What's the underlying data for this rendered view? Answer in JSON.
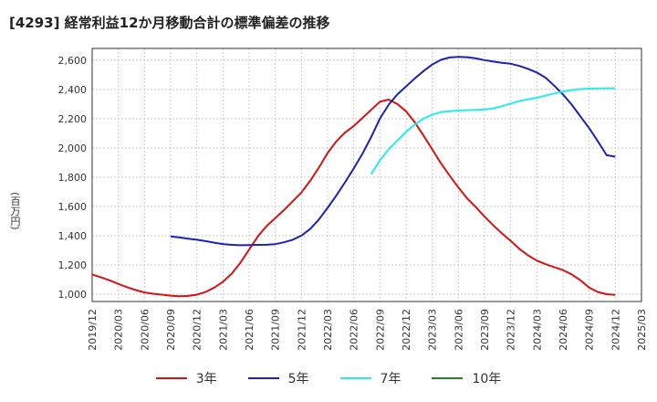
{
  "chart_data": {
    "type": "line",
    "title": "[4293]  経常利益12か月移動合計の標準偏差の推移",
    "ylabel": "(百万円)",
    "xlabel": "",
    "ylim": [
      950,
      2680
    ],
    "yticks": [
      1000,
      1200,
      1400,
      1600,
      1800,
      2000,
      2200,
      2400,
      2600
    ],
    "ytick_labels": [
      "1,000",
      "1,200",
      "1,400",
      "1,600",
      "1,800",
      "2,000",
      "2,200",
      "2,400",
      "2,600"
    ],
    "x_start": "2019-12",
    "x_end": "2025-03",
    "xticks": [
      "2019/12",
      "2020/03",
      "2020/06",
      "2020/09",
      "2020/12",
      "2021/03",
      "2021/06",
      "2021/09",
      "2021/12",
      "2022/03",
      "2022/06",
      "2022/09",
      "2022/12",
      "2023/03",
      "2023/06",
      "2023/09",
      "2023/12",
      "2024/03",
      "2024/06",
      "2024/09",
      "2024/12",
      "2025/03"
    ],
    "grid": true,
    "legend_position": "bottom",
    "series": [
      {
        "name": "3年",
        "color": "#dd1111",
        "points": [
          [
            "2019-12",
            1135
          ],
          [
            "2020-01",
            1115
          ],
          [
            "2020-02",
            1095
          ],
          [
            "2020-03",
            1070
          ],
          [
            "2020-04",
            1048
          ],
          [
            "2020-05",
            1028
          ],
          [
            "2020-06",
            1012
          ],
          [
            "2020-07",
            1003
          ],
          [
            "2020-08",
            997
          ],
          [
            "2020-09",
            990
          ],
          [
            "2020-10",
            986
          ],
          [
            "2020-11",
            988
          ],
          [
            "2020-12",
            996
          ],
          [
            "2021-01",
            1015
          ],
          [
            "2021-02",
            1045
          ],
          [
            "2021-03",
            1085
          ],
          [
            "2021-04",
            1140
          ],
          [
            "2021-05",
            1215
          ],
          [
            "2021-06",
            1305
          ],
          [
            "2021-07",
            1395
          ],
          [
            "2021-08",
            1465
          ],
          [
            "2021-09",
            1520
          ],
          [
            "2021-10",
            1575
          ],
          [
            "2021-11",
            1635
          ],
          [
            "2021-12",
            1695
          ],
          [
            "2022-01",
            1775
          ],
          [
            "2022-02",
            1865
          ],
          [
            "2022-03",
            1965
          ],
          [
            "2022-04",
            2045
          ],
          [
            "2022-05",
            2105
          ],
          [
            "2022-06",
            2150
          ],
          [
            "2022-07",
            2205
          ],
          [
            "2022-08",
            2260
          ],
          [
            "2022-09",
            2315
          ],
          [
            "2022-10",
            2330
          ],
          [
            "2022-11",
            2300
          ],
          [
            "2022-12",
            2250
          ],
          [
            "2023-01",
            2175
          ],
          [
            "2023-02",
            2085
          ],
          [
            "2023-03",
            1990
          ],
          [
            "2023-04",
            1895
          ],
          [
            "2023-05",
            1810
          ],
          [
            "2023-06",
            1730
          ],
          [
            "2023-07",
            1655
          ],
          [
            "2023-08",
            1595
          ],
          [
            "2023-09",
            1530
          ],
          [
            "2023-10",
            1470
          ],
          [
            "2023-11",
            1415
          ],
          [
            "2023-12",
            1365
          ],
          [
            "2024-01",
            1310
          ],
          [
            "2024-02",
            1265
          ],
          [
            "2024-03",
            1230
          ],
          [
            "2024-04",
            1205
          ],
          [
            "2024-05",
            1185
          ],
          [
            "2024-06",
            1165
          ],
          [
            "2024-07",
            1135
          ],
          [
            "2024-08",
            1095
          ],
          [
            "2024-09",
            1045
          ],
          [
            "2024-10",
            1015
          ],
          [
            "2024-11",
            1000
          ],
          [
            "2024-12",
            995
          ]
        ]
      },
      {
        "name": "5年",
        "color": "#1a22bb",
        "points": [
          [
            "2020-09",
            1395
          ],
          [
            "2020-10",
            1388
          ],
          [
            "2020-11",
            1380
          ],
          [
            "2020-12",
            1372
          ],
          [
            "2021-01",
            1363
          ],
          [
            "2021-02",
            1352
          ],
          [
            "2021-03",
            1343
          ],
          [
            "2021-04",
            1337
          ],
          [
            "2021-05",
            1335
          ],
          [
            "2021-06",
            1336
          ],
          [
            "2021-07",
            1337
          ],
          [
            "2021-08",
            1338
          ],
          [
            "2021-09",
            1342
          ],
          [
            "2021-10",
            1355
          ],
          [
            "2021-11",
            1372
          ],
          [
            "2021-12",
            1400
          ],
          [
            "2022-01",
            1445
          ],
          [
            "2022-02",
            1510
          ],
          [
            "2022-03",
            1590
          ],
          [
            "2022-04",
            1675
          ],
          [
            "2022-05",
            1765
          ],
          [
            "2022-06",
            1860
          ],
          [
            "2022-07",
            1960
          ],
          [
            "2022-08",
            2075
          ],
          [
            "2022-09",
            2200
          ],
          [
            "2022-10",
            2295
          ],
          [
            "2022-11",
            2365
          ],
          [
            "2022-12",
            2420
          ],
          [
            "2023-01",
            2475
          ],
          [
            "2023-02",
            2525
          ],
          [
            "2023-03",
            2570
          ],
          [
            "2023-04",
            2602
          ],
          [
            "2023-05",
            2618
          ],
          [
            "2023-06",
            2622
          ],
          [
            "2023-07",
            2620
          ],
          [
            "2023-08",
            2612
          ],
          [
            "2023-09",
            2600
          ],
          [
            "2023-10",
            2590
          ],
          [
            "2023-11",
            2582
          ],
          [
            "2023-12",
            2575
          ],
          [
            "2024-01",
            2560
          ],
          [
            "2024-02",
            2540
          ],
          [
            "2024-03",
            2515
          ],
          [
            "2024-04",
            2480
          ],
          [
            "2024-05",
            2425
          ],
          [
            "2024-06",
            2365
          ],
          [
            "2024-07",
            2295
          ],
          [
            "2024-08",
            2215
          ],
          [
            "2024-09",
            2135
          ],
          [
            "2024-10",
            2045
          ],
          [
            "2024-11",
            1950
          ],
          [
            "2024-12",
            1940
          ]
        ]
      },
      {
        "name": "7年",
        "color": "#22eeee",
        "points": [
          [
            "2022-08",
            1820
          ],
          [
            "2022-09",
            1915
          ],
          [
            "2022-10",
            1990
          ],
          [
            "2022-11",
            2050
          ],
          [
            "2022-12",
            2110
          ],
          [
            "2023-01",
            2160
          ],
          [
            "2023-02",
            2200
          ],
          [
            "2023-03",
            2228
          ],
          [
            "2023-04",
            2245
          ],
          [
            "2023-05",
            2250
          ],
          [
            "2023-06",
            2255
          ],
          [
            "2023-07",
            2258
          ],
          [
            "2023-08",
            2260
          ],
          [
            "2023-09",
            2262
          ],
          [
            "2023-10",
            2270
          ],
          [
            "2023-11",
            2285
          ],
          [
            "2023-12",
            2303
          ],
          [
            "2024-01",
            2320
          ],
          [
            "2024-02",
            2332
          ],
          [
            "2024-03",
            2343
          ],
          [
            "2024-04",
            2358
          ],
          [
            "2024-05",
            2372
          ],
          [
            "2024-06",
            2385
          ],
          [
            "2024-07",
            2395
          ],
          [
            "2024-08",
            2402
          ],
          [
            "2024-09",
            2405
          ],
          [
            "2024-10",
            2407
          ],
          [
            "2024-11",
            2408
          ],
          [
            "2024-12",
            2408
          ]
        ]
      },
      {
        "name": "10年",
        "color": "#228822",
        "points": []
      }
    ]
  }
}
